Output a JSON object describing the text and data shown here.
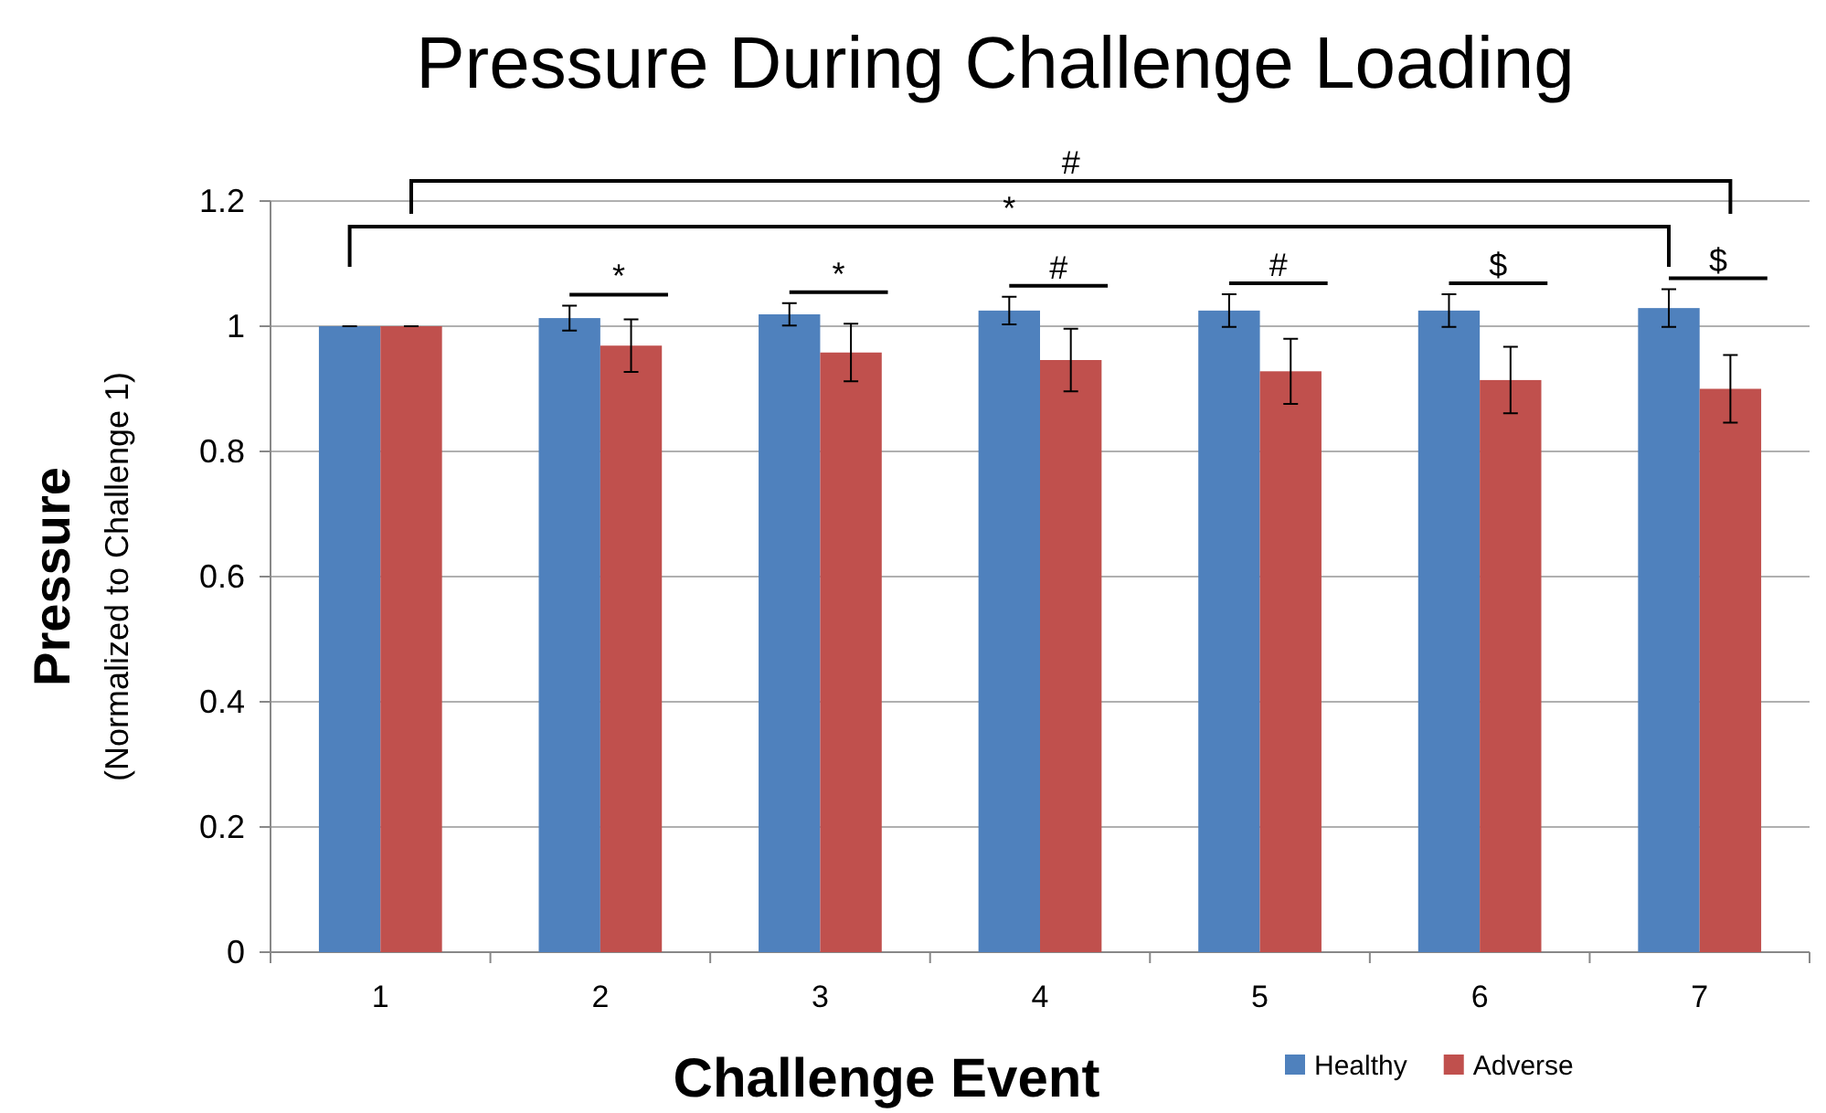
{
  "chart_data": {
    "type": "bar",
    "title": "Pressure During Challenge Loading",
    "xlabel": "Challenge Event",
    "ylabel": "Pressure",
    "subtitle": "(Normalized to Challenge 1)",
    "categories": [
      "1",
      "2",
      "3",
      "4",
      "5",
      "6",
      "7"
    ],
    "series": [
      {
        "name": "Healthy",
        "color": "#4f81bd",
        "values": [
          1.0,
          1.013,
          1.019,
          1.025,
          1.025,
          1.025,
          1.029
        ],
        "errors": [
          0,
          0.02,
          0.018,
          0.022,
          0.026,
          0.026,
          0.03
        ]
      },
      {
        "name": "Adverse",
        "color": "#c0504d",
        "values": [
          1.0,
          0.969,
          0.958,
          0.946,
          0.928,
          0.914,
          0.9
        ],
        "errors": [
          0,
          0.042,
          0.046,
          0.05,
          0.052,
          0.053,
          0.054
        ]
      }
    ],
    "ylim": [
      0,
      1.2
    ],
    "yticks": [
      0,
      {
        "value": 0.2,
        "label": "0.2"
      },
      {
        "value": 0.4,
        "label": "0.4"
      },
      {
        "value": 0.6,
        "label": "0.6"
      },
      {
        "value": 0.8,
        "label": "0.8"
      },
      1,
      {
        "value": 1.2,
        "label": "1.2"
      }
    ],
    "grid": "y",
    "legend": "bottom right",
    "annotations": [
      "*",
      "#",
      "*",
      "*",
      "#",
      "#",
      "$",
      "$"
    ]
  }
}
